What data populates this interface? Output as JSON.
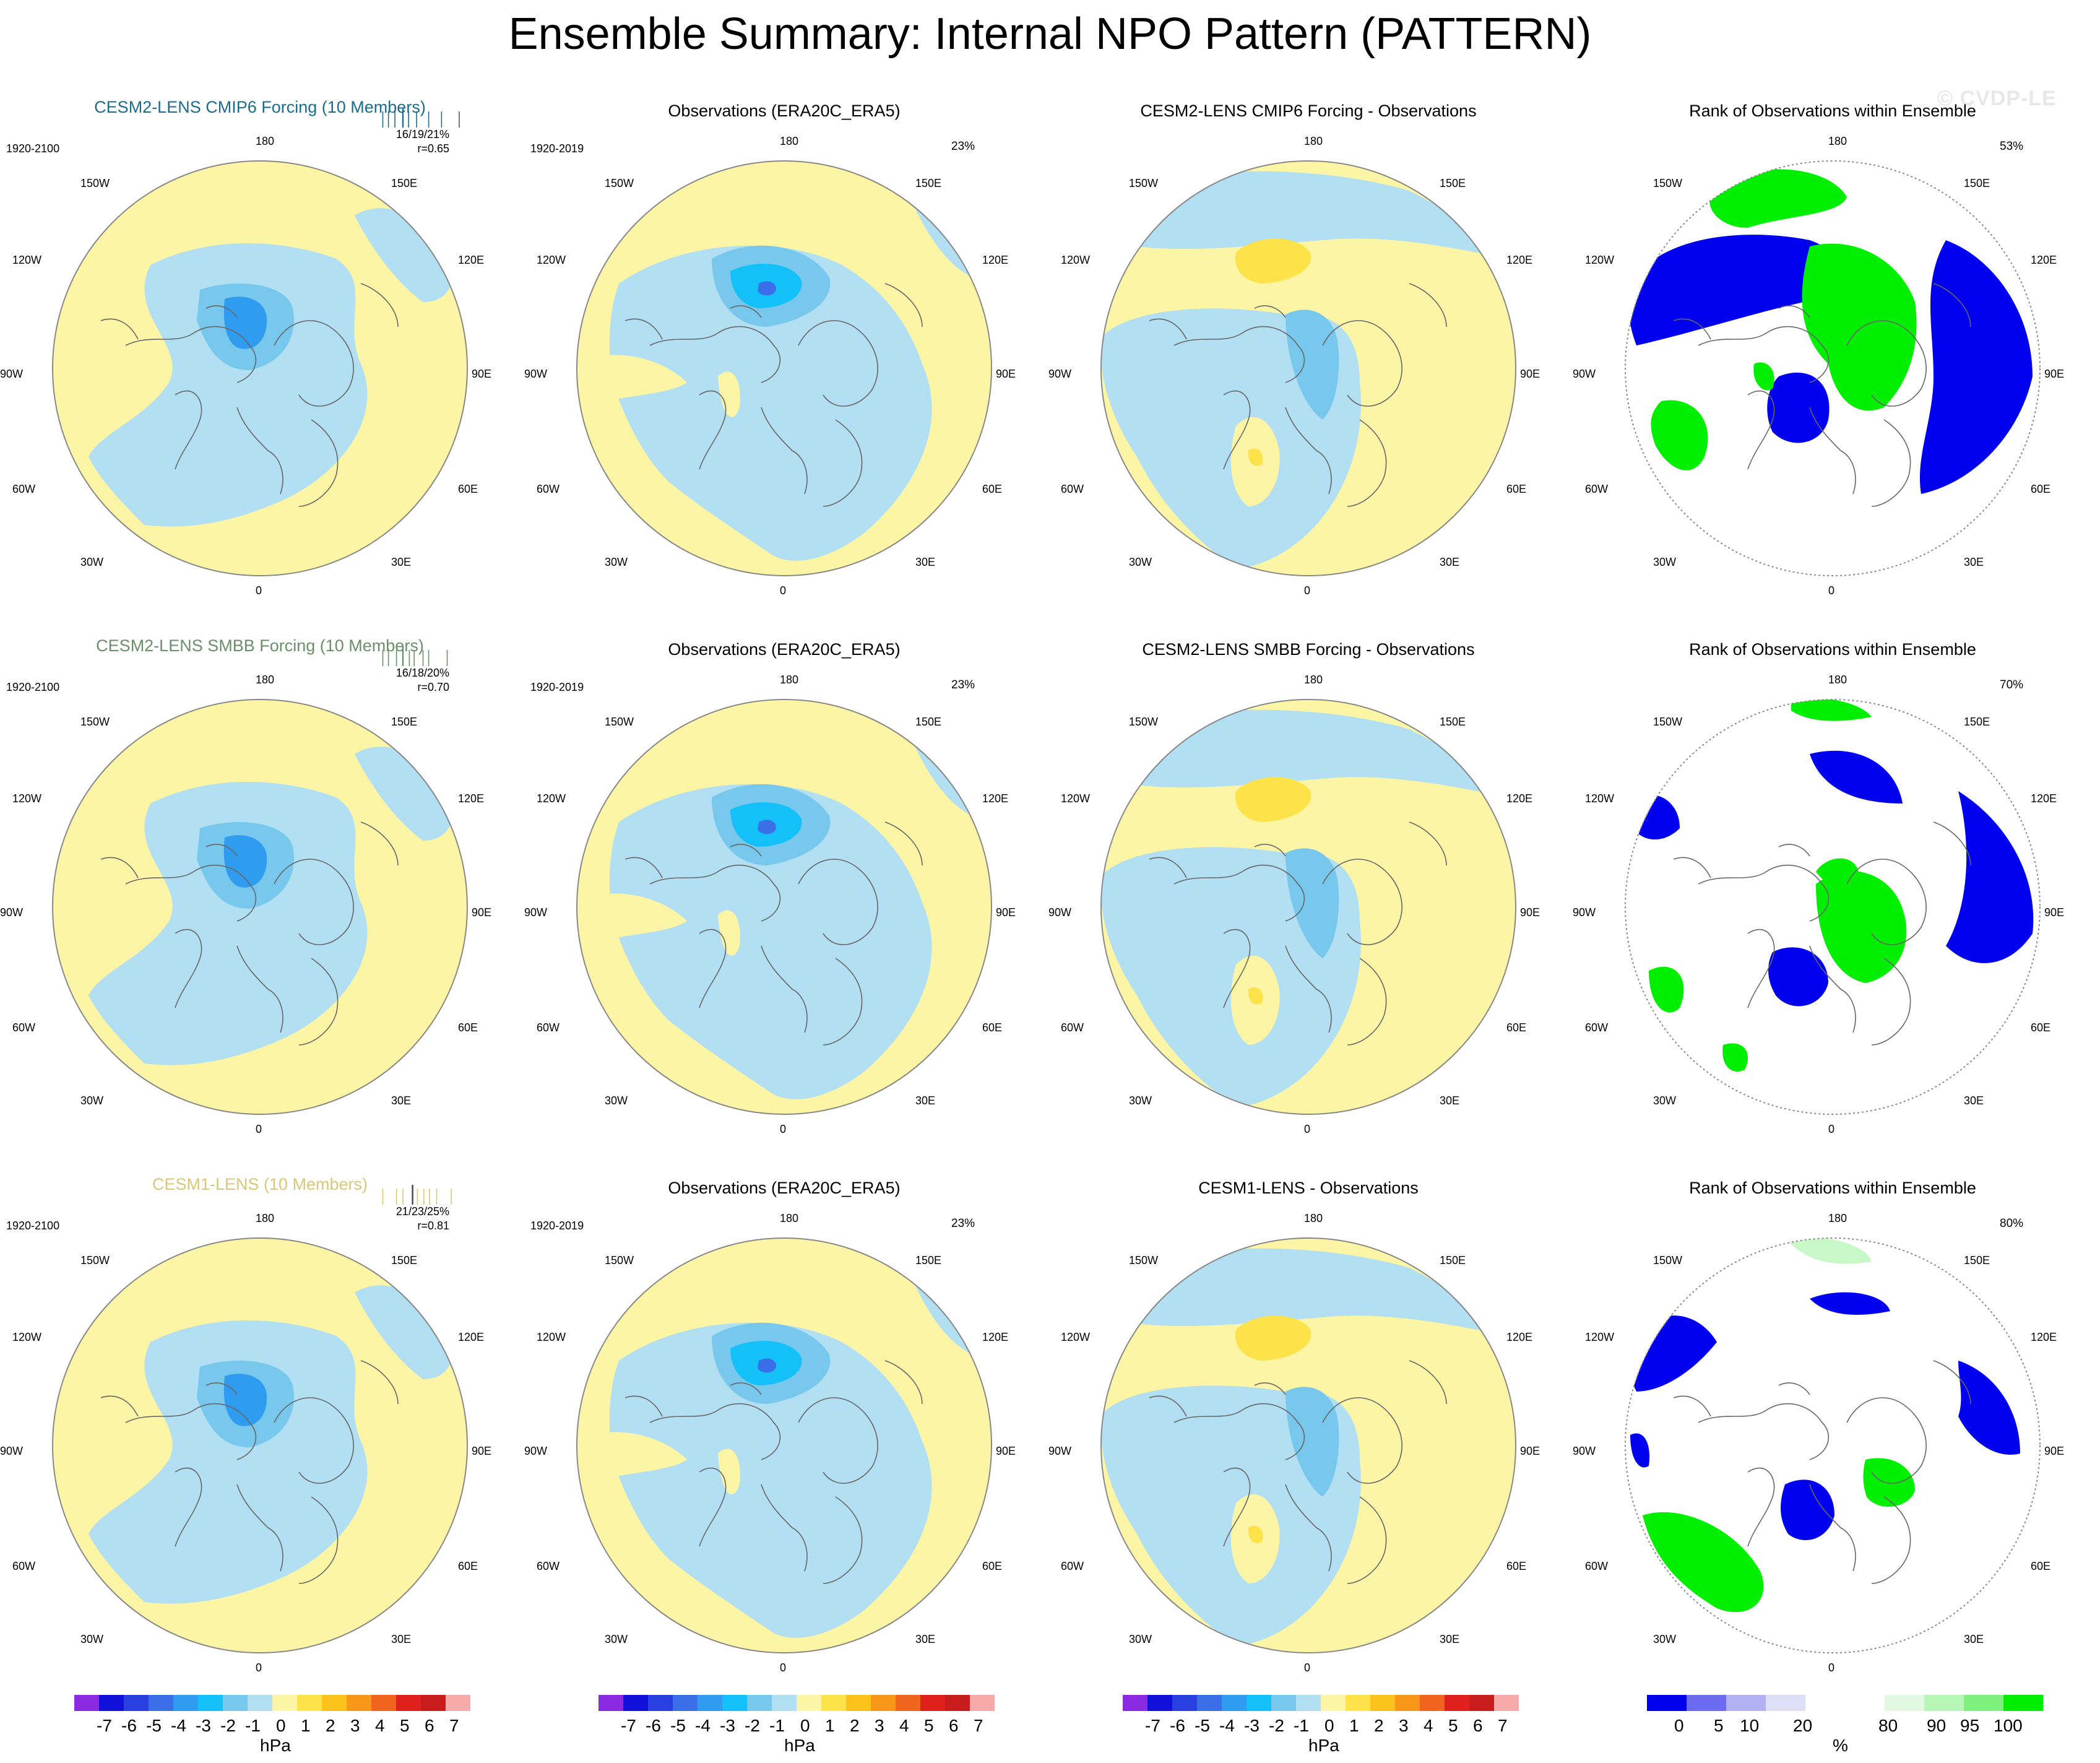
{
  "title": "Ensemble Summary: Internal NPO Pattern (PATTERN)",
  "watermark": "© CVDP-LE",
  "lon_labels": {
    "top": "180",
    "bottom": "0",
    "w150": "150W",
    "w120": "120W",
    "w90": "90W",
    "w60": "60W",
    "w30": "30W",
    "e150": "150E",
    "e120": "120E",
    "e90": "90E",
    "e60": "60E",
    "e30": "30E"
  },
  "rows": [
    {
      "model": {
        "title": "CESM2-LENS CMIP6 Forcing (10 Members)",
        "color": "#1e6b8c",
        "period": "1920-2100",
        "stats": "16/19/21%",
        "r": "r=0.65",
        "ticks": [
          0.05,
          0.12,
          0.2,
          0.3,
          0.37,
          0.47,
          0.62,
          0.78,
          1.0
        ],
        "tick_colors": [
          "#1e6b8c",
          "#1e6b8c",
          "#1e6b8c",
          "#1e6b8c",
          "#1e6b8c",
          "#1e6b8c",
          "#1e6b8c",
          "#1e6b8c",
          "#555555"
        ]
      },
      "obs": {
        "title": "Observations (ERA20C_ERA5)",
        "period": "1920-2019",
        "pct": "23%"
      },
      "diff": {
        "title": "CESM2-LENS CMIP6 Forcing - Observations"
      },
      "rank": {
        "title": "Rank of Observations within Ensemble",
        "pct": "53%"
      }
    },
    {
      "model": {
        "title": "CESM2-LENS SMBB Forcing (10 Members)",
        "color": "#6a8f6a",
        "period": "1920-2100",
        "stats": "16/18/20%",
        "r": "r=0.70",
        "ticks": [
          0.05,
          0.12,
          0.22,
          0.3,
          0.38,
          0.44,
          0.55,
          0.62,
          0.85
        ],
        "tick_colors": [
          "#6a8f6a",
          "#6a8f6a",
          "#6a8f6a",
          "#6a8f6a",
          "#6a8f6a",
          "#6a8f6a",
          "#6a8f6a",
          "#6a8f6a",
          "#6a8f6a"
        ]
      },
      "obs": {
        "title": "Observations (ERA20C_ERA5)",
        "period": "1920-2019",
        "pct": "23%"
      },
      "diff": {
        "title": "CESM2-LENS SMBB Forcing - Observations"
      },
      "rank": {
        "title": "Rank of Observations within Ensemble",
        "pct": "70%"
      }
    },
    {
      "model": {
        "title": "CESM1-LENS (10 Members)",
        "color": "#d8c77a",
        "period": "1920-2100",
        "stats": "21/23/25%",
        "r": "r=0.81",
        "ticks": [
          0.05,
          0.22,
          0.3,
          0.42,
          0.48,
          0.56,
          0.63,
          0.72,
          0.9
        ],
        "tick_colors": [
          "#d8c77a",
          "#d8c77a",
          "#d8c77a",
          "#444444",
          "#d8c77a",
          "#d8c77a",
          "#d8c77a",
          "#d8c77a",
          "#d8c77a"
        ]
      },
      "obs": {
        "title": "Observations (ERA20C_ERA5)",
        "period": "1920-2019",
        "pct": "23%"
      },
      "diff": {
        "title": "CESM1-LENS - Observations"
      },
      "rank": {
        "title": "Rank of Observations within Ensemble",
        "pct": "80%"
      }
    }
  ],
  "colorbar_hpa": {
    "colors": [
      "#8a2be2",
      "#1010d8",
      "#2a3fe0",
      "#3b6fe8",
      "#2f9cf0",
      "#14c0f8",
      "#78c8ee",
      "#b3dff3",
      "#fdf5a6",
      "#fde24a",
      "#fbc21c",
      "#f6971a",
      "#f1641e",
      "#e0201c",
      "#c71d1d",
      "#f7aaaa"
    ],
    "labels": [
      "-7",
      "-6",
      "-5",
      "-4",
      "-3",
      "-2",
      "-1",
      "0",
      "1",
      "2",
      "3",
      "4",
      "5",
      "6",
      "7"
    ],
    "unit": "hPa"
  },
  "colorbar_pct": {
    "colors": [
      "#0000ee",
      "#6b6bf0",
      "#b1b1f4",
      "#dedef7",
      "#ffffff",
      "#ffffff",
      "#e1f9e1",
      "#b8f6b8",
      "#7ef07e",
      "#00ee00"
    ],
    "labels": [
      "0",
      "5",
      "10",
      "20",
      "80",
      "90",
      "95",
      "100"
    ],
    "unit": "%"
  },
  "legend_colors": {
    "neg1": "#b3dff3",
    "neg2": "#78c8ee",
    "neg3": "#2f9cf0",
    "neg4": "#14c0f8",
    "neg5": "#3b6fe8",
    "pos1": "#fdf5a6",
    "pos2": "#fde24a",
    "rank_low": "#0000ee",
    "rank_lowmid": "#dedef7",
    "rank_high": "#00ee00",
    "rank_highmid": "#c8f8c8",
    "coast": "#666666",
    "edge": "#888888"
  }
}
